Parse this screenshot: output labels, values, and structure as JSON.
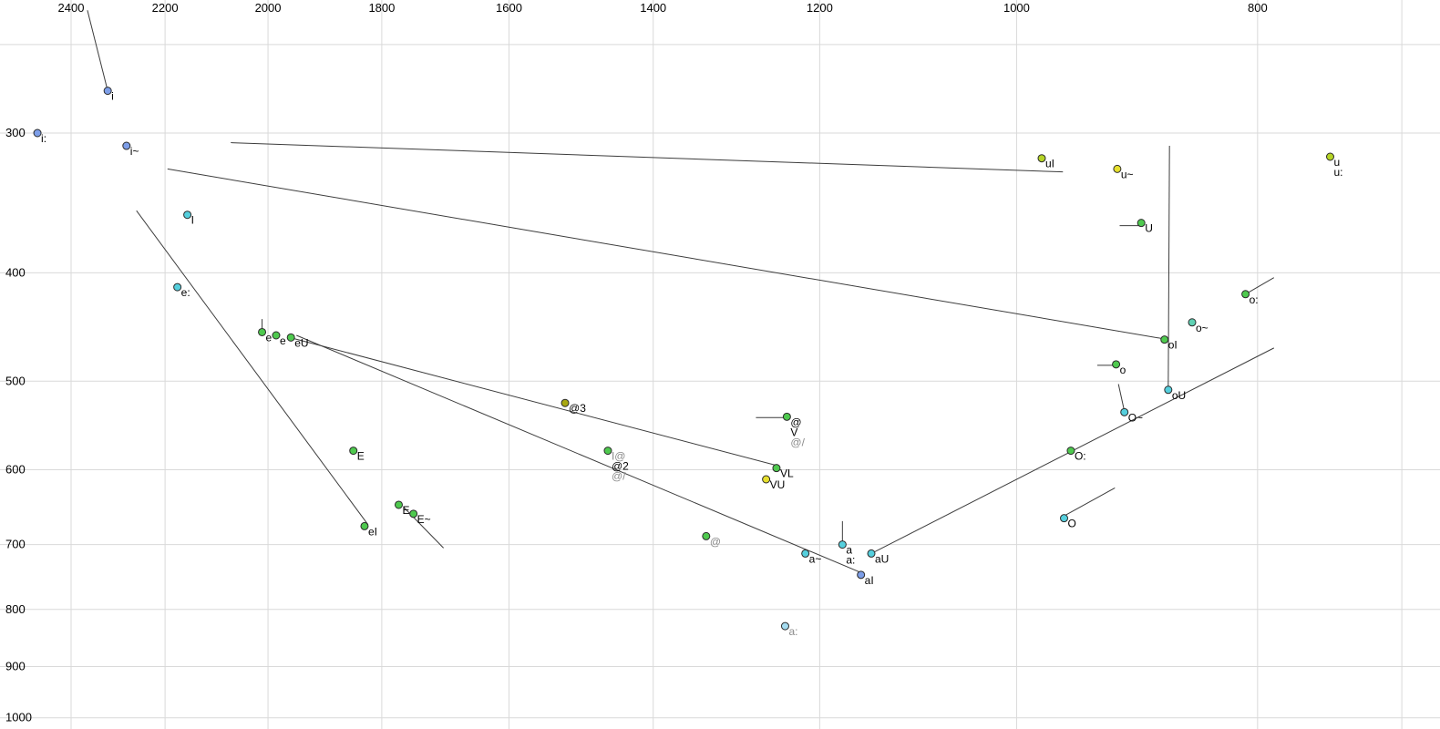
{
  "chart_data": {
    "type": "scatter",
    "title": "",
    "description": "Vowel formant plot (F2 horizontal, reversed log scale; F1 vertical, inverted log scale) with vowel points, phonetic labels and diphthong trajectory lines",
    "x_axis": {
      "label": "",
      "ticks": [
        2400,
        2200,
        2000,
        1800,
        1600,
        1400,
        1200,
        1000,
        800
      ],
      "extra_gridlines": [
        700
      ],
      "scale": "log",
      "reversed": true,
      "position": "top"
    },
    "y_axis": {
      "label": "",
      "ticks": [
        300,
        400,
        500,
        600,
        700,
        800,
        900,
        1000
      ],
      "extra_gridlines": [
        250
      ],
      "scale": "log",
      "inverted": true,
      "position": "left"
    },
    "colors": {
      "blue": "#7d9ee8",
      "cyan": "#55cfdd",
      "green": "#4ec94e",
      "yellowgreen": "#b5d426",
      "yellow": "#e6df2e",
      "olive": "#a8a810",
      "lightblue": "#a5dcf0",
      "teal": "#5fd2b4",
      "line": "#3c3c3c",
      "grid": "#d9d9d9",
      "label": "#000000",
      "label_gray": "#8a8a8a",
      "point_stroke": "#2a2a2a"
    },
    "points": [
      {
        "f2": 2320,
        "f1": 275,
        "color": "blue",
        "labels": [
          {
            "t": "i"
          }
        ]
      },
      {
        "f2": 2476,
        "f1": 300,
        "color": "blue",
        "labels": [
          {
            "t": "i:"
          }
        ]
      },
      {
        "f2": 2280,
        "f1": 308,
        "color": "blue",
        "labels": [
          {
            "t": "i~"
          }
        ]
      },
      {
        "f2": 2155,
        "f1": 355,
        "color": "cyan",
        "labels": [
          {
            "t": "I"
          }
        ]
      },
      {
        "f2": 2175,
        "f1": 412,
        "color": "cyan",
        "labels": [
          {
            "t": "e:"
          }
        ]
      },
      {
        "f2": 2011,
        "f1": 452,
        "color": "green",
        "labels": [
          {
            "t": "e"
          }
        ]
      },
      {
        "f2": 1985,
        "f1": 455,
        "color": "green",
        "labels": [
          {
            "t": "e"
          }
        ]
      },
      {
        "f2": 1958,
        "f1": 457,
        "color": "green",
        "labels": [
          {
            "t": "eU"
          }
        ]
      },
      {
        "f2": 1848,
        "f1": 577,
        "color": "green",
        "labels": [
          {
            "t": "E"
          }
        ]
      },
      {
        "f2": 1772,
        "f1": 645,
        "color": "green",
        "labels": [
          {
            "t": "E"
          }
        ]
      },
      {
        "f2": 1748,
        "f1": 657,
        "color": "green",
        "labels": [
          {
            "t": "E~"
          }
        ]
      },
      {
        "f2": 1829,
        "f1": 674,
        "color": "green",
        "labels": [
          {
            "t": "eI"
          }
        ]
      },
      {
        "f2": 1519,
        "f1": 523,
        "color": "olive",
        "labels": [
          {
            "t": "@3"
          }
        ]
      },
      {
        "f2": 1460,
        "f1": 577,
        "color": "green",
        "labels": [
          {
            "t": "I@",
            "c": "gray"
          },
          {
            "t": "@2"
          },
          {
            "t": "@/",
            "c": "gray"
          }
        ]
      },
      {
        "f2": 1237,
        "f1": 538,
        "color": "green",
        "labels": [
          {
            "t": "@"
          },
          {
            "t": "V"
          },
          {
            "t": "@/",
            "c": "gray"
          }
        ]
      },
      {
        "f2": 1249,
        "f1": 598,
        "color": "green",
        "labels": [
          {
            "t": "VL"
          }
        ]
      },
      {
        "f2": 1261,
        "f1": 612,
        "color": "yellow",
        "labels": [
          {
            "t": "VU"
          }
        ]
      },
      {
        "f2": 1333,
        "f1": 688,
        "color": "green",
        "labels": [
          {
            "t": "@",
            "c": "gray"
          }
        ]
      },
      {
        "f2": 1216,
        "f1": 713,
        "color": "cyan",
        "labels": [
          {
            "t": "a~"
          }
        ]
      },
      {
        "f2": 1175,
        "f1": 700,
        "color": "cyan",
        "labels": [
          {
            "t": "a"
          },
          {
            "t": "a:"
          }
        ]
      },
      {
        "f2": 1155,
        "f1": 745,
        "color": "blue",
        "labels": [
          {
            "t": "aI"
          }
        ]
      },
      {
        "f2": 1144,
        "f1": 713,
        "color": "cyan",
        "labels": [
          {
            "t": "aU"
          }
        ]
      },
      {
        "f2": 1239,
        "f1": 828,
        "color": "lightblue",
        "labels": [
          {
            "t": "a:",
            "c": "gray"
          }
        ]
      },
      {
        "f2": 977,
        "f1": 316,
        "color": "yellowgreen",
        "labels": [
          {
            "t": "uI"
          }
        ]
      },
      {
        "f2": 911,
        "f1": 323,
        "color": "yellow",
        "labels": [
          {
            "t": "u~"
          }
        ]
      },
      {
        "f2": 891,
        "f1": 361,
        "color": "green",
        "labels": [
          {
            "t": "U"
          }
        ]
      },
      {
        "f2": 748,
        "f1": 315,
        "color": "yellowgreen",
        "labels": [
          {
            "t": "u"
          },
          {
            "t": "u:"
          }
        ]
      },
      {
        "f2": 809,
        "f1": 418,
        "color": "green",
        "labels": [
          {
            "t": "o:"
          }
        ]
      },
      {
        "f2": 850,
        "f1": 443,
        "color": "teal",
        "labels": [
          {
            "t": "o~"
          }
        ]
      },
      {
        "f2": 872,
        "f1": 459,
        "color": "green",
        "labels": [
          {
            "t": "oI"
          }
        ]
      },
      {
        "f2": 912,
        "f1": 483,
        "color": "green",
        "labels": [
          {
            "t": "o"
          }
        ]
      },
      {
        "f2": 869,
        "f1": 509,
        "color": "cyan",
        "labels": [
          {
            "t": "oU"
          }
        ]
      },
      {
        "f2": 905,
        "f1": 533,
        "color": "cyan",
        "labels": [
          {
            "t": "O~"
          }
        ]
      },
      {
        "f2": 951,
        "f1": 577,
        "color": "green",
        "labels": [
          {
            "t": "O:"
          }
        ]
      },
      {
        "f2": 957,
        "f1": 663,
        "color": "cyan",
        "labels": [
          {
            "t": "O"
          }
        ]
      }
    ],
    "segments": [
      {
        "f2a": 2364,
        "f1a": 233,
        "f2b": 2320,
        "f1b": 275
      },
      {
        "f2a": 958,
        "f1a": 325,
        "f2b": 2070,
        "f1b": 306
      },
      {
        "f2a": 869,
        "f1a": 459,
        "f2b": 2195,
        "f1b": 323
      },
      {
        "f2a": 1823,
        "f1a": 672,
        "f2b": 2259,
        "f1b": 352
      },
      {
        "f2a": 1156,
        "f1a": 741,
        "f2b": 1948,
        "f1b": 455
      },
      {
        "f2a": 1953,
        "f1a": 458,
        "f2b": 1248,
        "f1b": 595
      },
      {
        "f2a": 1144,
        "f1a": 713,
        "f2b": 788,
        "f1b": 467
      },
      {
        "f2a": 869,
        "f1a": 509,
        "f2b": 868,
        "f1b": 308
      },
      {
        "f2a": 809,
        "f1a": 418,
        "f2b": 788,
        "f1b": 404
      },
      {
        "f2a": 891,
        "f1a": 363,
        "f2b": 909,
        "f1b": 363
      },
      {
        "f2a": 912,
        "f1a": 484,
        "f2b": 928,
        "f1b": 484
      },
      {
        "f2a": 905,
        "f1a": 532,
        "f2b": 910,
        "f1b": 503
      },
      {
        "f2a": 957,
        "f1a": 660,
        "f2b": 913,
        "f1b": 623
      },
      {
        "f2a": 1237,
        "f1a": 539,
        "f2b": 1273,
        "f1b": 539
      },
      {
        "f2a": 1175,
        "f1a": 702,
        "f2b": 1175,
        "f1b": 667
      },
      {
        "f2a": 2011,
        "f1a": 450,
        "f2b": 2011,
        "f1b": 440
      },
      {
        "f2a": 1764,
        "f1a": 648,
        "f2b": 1700,
        "f1b": 705
      }
    ]
  }
}
